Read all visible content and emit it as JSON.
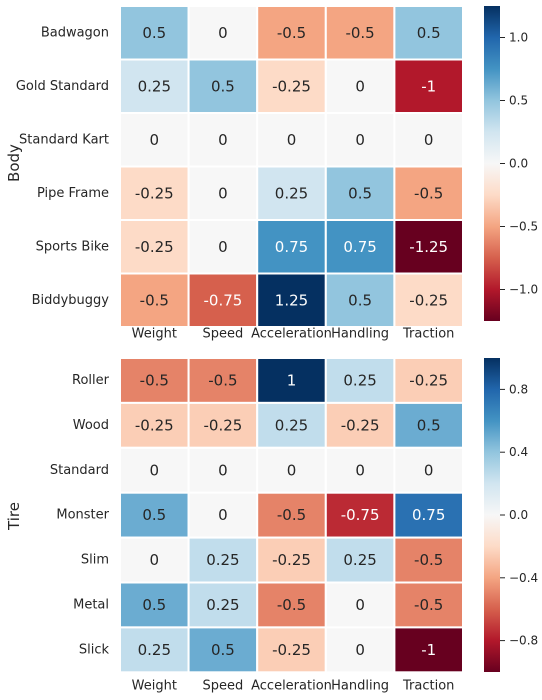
{
  "chart_data": [
    {
      "type": "heatmap",
      "ylabel": "Body",
      "x_categories": [
        "Weight",
        "Speed",
        "Acceleration",
        "Handling",
        "Traction"
      ],
      "y_categories": [
        "Badwagon",
        "Gold Standard",
        "Standard Kart",
        "Pipe Frame",
        "Sports Bike",
        "Biddybuggy"
      ],
      "values": [
        [
          0.5,
          0,
          -0.5,
          -0.5,
          0.5
        ],
        [
          0.25,
          0.5,
          -0.25,
          0,
          -1
        ],
        [
          0,
          0,
          0,
          0,
          0
        ],
        [
          -0.25,
          0,
          0.25,
          0.5,
          -0.5
        ],
        [
          -0.25,
          0,
          0.75,
          0.75,
          -1.25
        ],
        [
          -0.5,
          -0.75,
          1.25,
          0.5,
          -0.25
        ]
      ],
      "value_labels": [
        [
          "0.5",
          "0",
          "-0.5",
          "-0.5",
          "0.5"
        ],
        [
          "0.25",
          "0.5",
          "-0.25",
          "0",
          "-1"
        ],
        [
          "0",
          "0",
          "0",
          "0",
          "0"
        ],
        [
          "-0.25",
          "0",
          "0.25",
          "0.5",
          "-0.5"
        ],
        [
          "-0.25",
          "0",
          "0.75",
          "0.75",
          "-1.25"
        ],
        [
          "-0.5",
          "-0.75",
          "1.25",
          "0.5",
          "-0.25"
        ]
      ],
      "colorbar": {
        "colormap": "RdBu",
        "range": [
          -1.25,
          1.25
        ],
        "ticks": [
          -1.0,
          -0.5,
          0.0,
          0.5,
          1.0
        ],
        "tick_labels": [
          "−1.0",
          "−0.5",
          "0.0",
          "0.5",
          "1.0"
        ]
      }
    },
    {
      "type": "heatmap",
      "ylabel": "Tire",
      "x_categories": [
        "Weight",
        "Speed",
        "Acceleration",
        "Handling",
        "Traction"
      ],
      "y_categories": [
        "Roller",
        "Wood",
        "Standard",
        "Monster",
        "Slim",
        "Metal",
        "Slick"
      ],
      "values": [
        [
          -0.5,
          -0.5,
          1,
          0.25,
          -0.25
        ],
        [
          -0.25,
          -0.25,
          0.25,
          -0.25,
          0.5
        ],
        [
          0,
          0,
          0,
          0,
          0
        ],
        [
          0.5,
          0,
          -0.5,
          -0.75,
          0.75
        ],
        [
          0,
          0.25,
          -0.25,
          0.25,
          -0.5
        ],
        [
          0.5,
          0.25,
          -0.5,
          0,
          -0.5
        ],
        [
          0.25,
          0.5,
          -0.25,
          0,
          -1
        ]
      ],
      "value_labels": [
        [
          "-0.5",
          "-0.5",
          "1",
          "0.25",
          "-0.25"
        ],
        [
          "-0.25",
          "-0.25",
          "0.25",
          "-0.25",
          "0.5"
        ],
        [
          "0",
          "0",
          "0",
          "0",
          "0"
        ],
        [
          "0.5",
          "0",
          "-0.5",
          "-0.75",
          "0.75"
        ],
        [
          "0",
          "0.25",
          "-0.25",
          "0.25",
          "-0.5"
        ],
        [
          "0.5",
          "0.25",
          "-0.5",
          "0",
          "-0.5"
        ],
        [
          "0.25",
          "0.5",
          "-0.25",
          "0",
          "-1"
        ]
      ],
      "colorbar": {
        "colormap": "RdBu",
        "range": [
          -1,
          1
        ],
        "ticks": [
          -0.8,
          -0.4,
          0.0,
          0.4,
          0.8
        ],
        "tick_labels": [
          "−0.8",
          "−0.4",
          "0.0",
          "0.4",
          "0.8"
        ]
      }
    }
  ]
}
